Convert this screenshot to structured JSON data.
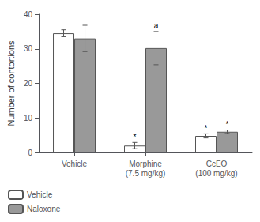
{
  "chart_data": {
    "type": "bar",
    "categories": [
      "Vehicle",
      "Morphine\n(7.5 mg/kg)",
      "CcEO\n(100 mg/kg)"
    ],
    "series": [
      {
        "name": "Vehicle",
        "color": "#ffffff",
        "values": [
          34.5,
          2.0,
          4.8
        ],
        "errors": [
          1.0,
          0.9,
          0.6
        ],
        "annotations": [
          null,
          "*",
          "*"
        ]
      },
      {
        "name": "Naloxone",
        "color": "#999999",
        "values": [
          33.0,
          30.2,
          6.0
        ],
        "errors": [
          3.8,
          4.8,
          0.5
        ],
        "annotations": [
          null,
          "a",
          "*"
        ]
      }
    ],
    "ylabel": "Number of contortions",
    "ylim": [
      0,
      40
    ],
    "yticks": [
      0,
      10,
      20,
      30,
      40
    ],
    "grid": false,
    "legend": "lower left"
  }
}
